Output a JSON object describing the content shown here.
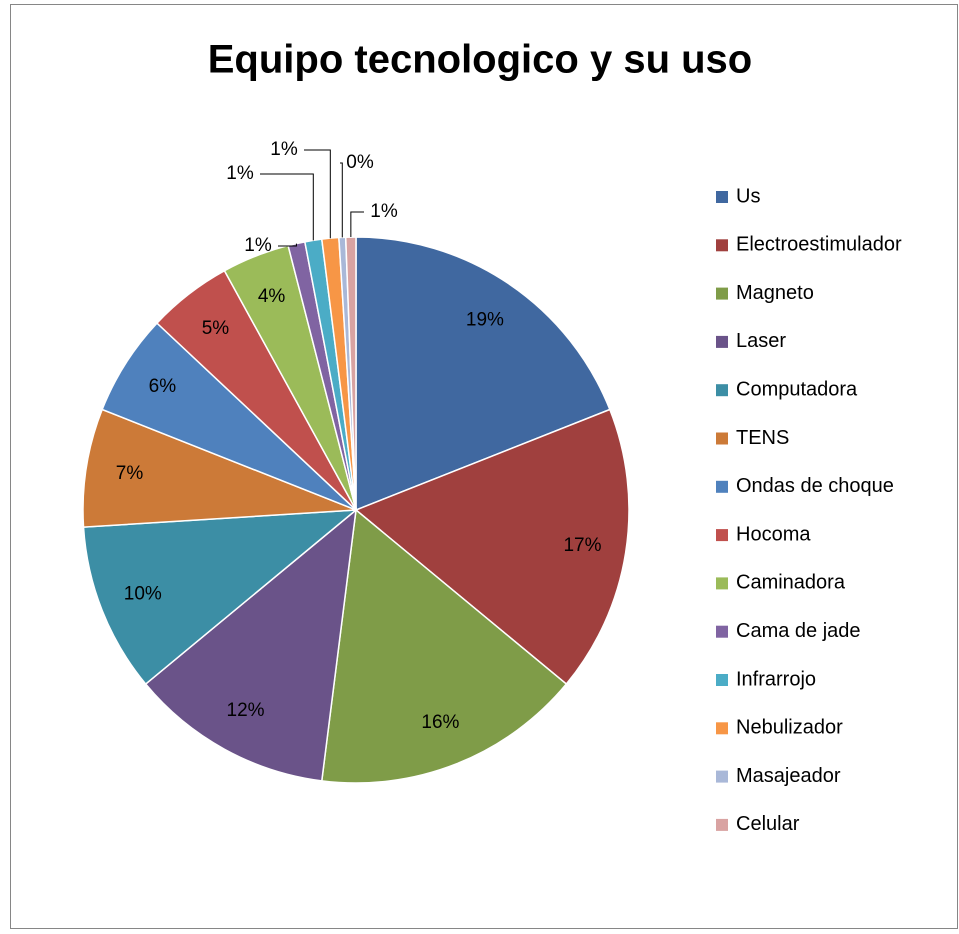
{
  "chart_data": {
    "type": "pie",
    "title": "Equipo tecnologico y su uso",
    "categories": [
      "Us",
      "Electroestimulador",
      "Magneto",
      "Laser",
      "Computadora",
      "TENS",
      "Ondas de choque",
      "Hocoma",
      "Caminadora",
      "Cama de jade",
      "Infrarrojo",
      "Nebulizador",
      "Masajeador",
      "Celular"
    ],
    "values": [
      19,
      17,
      16,
      12,
      10,
      7,
      6,
      5,
      4,
      1,
      1,
      1,
      0.4,
      0.6
    ],
    "value_labels": [
      "19%",
      "17%",
      "16%",
      "12%",
      "10%",
      "7%",
      "6%",
      "5%",
      "4%",
      "1%",
      "1%",
      "1%",
      "0%",
      "1%"
    ],
    "colors": [
      "#4068A0",
      "#A0403E",
      "#7F9C48",
      "#6A5389",
      "#3C8EA5",
      "#CC7A38",
      "#4F81BD",
      "#C0504D",
      "#9BBB59",
      "#8064A2",
      "#4BACC6",
      "#F79646",
      "#A9B8D8",
      "#D9A3A2"
    ],
    "legend": "right"
  }
}
